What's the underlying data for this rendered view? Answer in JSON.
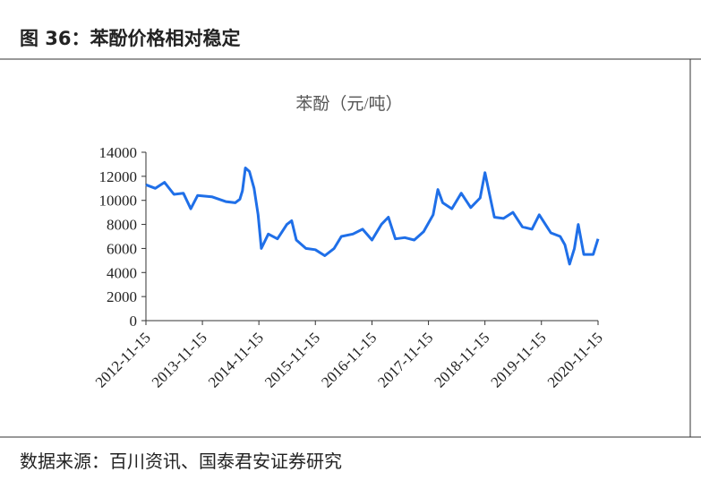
{
  "figure_title": "图 36：苯酚价格相对稳定",
  "source": "数据来源：百川资讯、国泰君安证券研究",
  "chart_data": {
    "type": "line",
    "title": "苯酚（元/吨）",
    "x": [
      "2012-11-15",
      "2013-01-15",
      "2013-03-15",
      "2013-05-15",
      "2013-07-15",
      "2013-09-01",
      "2013-10-15",
      "2014-01-15",
      "2014-04-15",
      "2014-06-15",
      "2014-07-15",
      "2014-08-01",
      "2014-08-20",
      "2014-09-15",
      "2014-10-15",
      "2014-11-10",
      "2014-12-01",
      "2015-01-15",
      "2015-03-15",
      "2015-05-15",
      "2015-06-15",
      "2015-07-15",
      "2015-09-15",
      "2015-11-15",
      "2016-01-15",
      "2016-03-15",
      "2016-05-01",
      "2016-07-15",
      "2016-09-15",
      "2016-11-15",
      "2017-01-15",
      "2017-03-01",
      "2017-04-15",
      "2017-06-15",
      "2017-08-15",
      "2017-10-15",
      "2017-12-15",
      "2018-01-15",
      "2018-02-15",
      "2018-04-15",
      "2018-06-15",
      "2018-08-15",
      "2018-10-15",
      "2018-11-15",
      "2019-01-15",
      "2019-03-15",
      "2019-05-15",
      "2019-07-15",
      "2019-09-15",
      "2019-11-01",
      "2020-01-15",
      "2020-03-15",
      "2020-04-15",
      "2020-05-15",
      "2020-06-15",
      "2020-07-10",
      "2020-08-15",
      "2020-10-15",
      "2020-11-15"
    ],
    "series": [
      {
        "name": "苯酚",
        "color": "#1f6fe8",
        "values": [
          11300,
          11000,
          11500,
          10500,
          10600,
          9300,
          10400,
          10300,
          9900,
          9800,
          10100,
          10800,
          12700,
          12400,
          11000,
          8800,
          6000,
          7200,
          6800,
          8000,
          8300,
          6700,
          6000,
          5900,
          5400,
          6000,
          7000,
          7200,
          7600,
          6700,
          8000,
          8600,
          6800,
          6900,
          6700,
          7400,
          8800,
          10900,
          9800,
          9300,
          10600,
          9400,
          10200,
          12300,
          8600,
          8500,
          9000,
          7800,
          7600,
          8800,
          7300,
          7000,
          6300,
          4700,
          6000,
          8000,
          5500,
          5500,
          6800
        ]
      }
    ],
    "xlim": [
      "2012-11-15",
      "2020-11-15"
    ],
    "xticks": [
      "2012-11-15",
      "2013-11-15",
      "2014-11-15",
      "2015-11-15",
      "2016-11-15",
      "2017-11-15",
      "2018-11-15",
      "2019-11-15",
      "2020-11-15"
    ],
    "ylim": [
      0,
      14000
    ],
    "yticks": [
      0,
      2000,
      4000,
      6000,
      8000,
      10000,
      12000,
      14000
    ]
  }
}
